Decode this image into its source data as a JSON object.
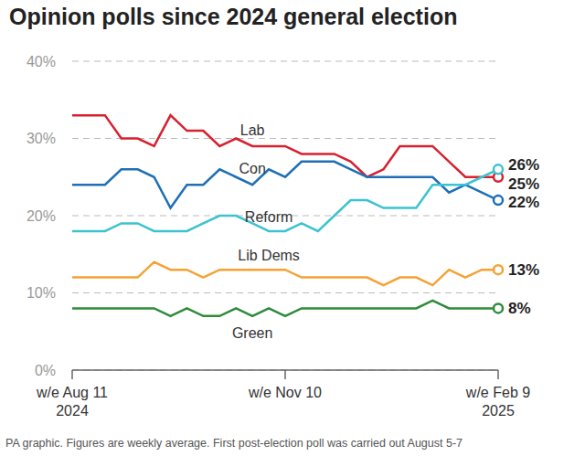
{
  "chart_data": {
    "type": "line",
    "title": "Opinion polls since 2024 general election",
    "footnote": "PA graphic. Figures are weekly average. First post-election poll was carried out August 5-7",
    "categories": [
      "w/e Aug 11\n2024",
      null,
      null,
      null,
      null,
      null,
      null,
      null,
      null,
      null,
      null,
      null,
      null,
      "w/e Nov 10",
      null,
      null,
      null,
      null,
      null,
      null,
      null,
      null,
      null,
      null,
      null,
      null,
      "w/e Feb 9\n2025"
    ],
    "ylim": [
      0,
      40
    ],
    "yticks": [
      {
        "value": 0,
        "label": "0%"
      },
      {
        "value": 10,
        "label": "10%"
      },
      {
        "value": 20,
        "label": "20%"
      },
      {
        "value": 30,
        "label": "30%"
      },
      {
        "value": 40,
        "label": "40%"
      }
    ],
    "grid": true,
    "series": [
      {
        "name": "Lab",
        "color": "#d6202e",
        "values": [
          33,
          33,
          33,
          30,
          30,
          29,
          33,
          31,
          31,
          29,
          30,
          29,
          29,
          29,
          28,
          28,
          28,
          27,
          25,
          26,
          29,
          29,
          29,
          27,
          25,
          25,
          25
        ],
        "value_labels": [
          null,
          null,
          null,
          null,
          null,
          null,
          null,
          null,
          null,
          null,
          null,
          null,
          null,
          null,
          null,
          null,
          null,
          null,
          null,
          null,
          null,
          null,
          null,
          null,
          null,
          null,
          "25%"
        ]
      },
      {
        "name": "Con",
        "color": "#1f6fb5",
        "values": [
          24,
          24,
          24,
          26,
          26,
          25,
          21,
          24,
          24,
          26,
          25,
          24,
          26,
          25,
          27,
          27,
          27,
          26,
          25,
          25,
          25,
          25,
          25,
          23,
          24,
          23,
          22
        ],
        "value_labels": [
          null,
          null,
          null,
          null,
          null,
          null,
          null,
          null,
          null,
          null,
          null,
          null,
          null,
          null,
          null,
          null,
          null,
          null,
          null,
          null,
          null,
          null,
          null,
          null,
          null,
          null,
          "22%"
        ]
      },
      {
        "name": "Reform",
        "color": "#3cc3d0",
        "values": [
          18,
          18,
          18,
          19,
          19,
          18,
          18,
          18,
          19,
          20,
          20,
          19,
          18,
          18,
          19,
          18,
          20,
          22,
          22,
          21,
          21,
          21,
          24,
          24,
          24,
          25,
          26
        ],
        "value_labels": [
          null,
          null,
          null,
          null,
          null,
          null,
          null,
          null,
          null,
          null,
          null,
          null,
          null,
          null,
          null,
          null,
          null,
          null,
          null,
          null,
          null,
          null,
          null,
          null,
          null,
          null,
          "26%"
        ]
      },
      {
        "name": "Lib Dems",
        "color": "#f5a233",
        "values": [
          12,
          12,
          12,
          12,
          12,
          14,
          13,
          13,
          12,
          13,
          13,
          13,
          13,
          13,
          12,
          12,
          12,
          12,
          12,
          11,
          12,
          12,
          11,
          13,
          12,
          13,
          13
        ],
        "value_labels": [
          null,
          null,
          null,
          null,
          null,
          null,
          null,
          null,
          null,
          null,
          null,
          null,
          null,
          null,
          null,
          null,
          null,
          null,
          null,
          null,
          null,
          null,
          null,
          null,
          null,
          null,
          "13%"
        ]
      },
      {
        "name": "Green",
        "color": "#2e8b3a",
        "values": [
          8,
          8,
          8,
          8,
          8,
          8,
          7,
          8,
          7,
          7,
          8,
          7,
          8,
          7,
          8,
          8,
          8,
          8,
          8,
          8,
          8,
          8,
          9,
          8,
          8,
          8,
          8
        ],
        "value_labels": [
          null,
          null,
          null,
          null,
          null,
          null,
          null,
          null,
          null,
          null,
          null,
          null,
          null,
          null,
          null,
          null,
          null,
          null,
          null,
          null,
          null,
          null,
          null,
          null,
          null,
          null,
          "8%"
        ]
      }
    ]
  }
}
